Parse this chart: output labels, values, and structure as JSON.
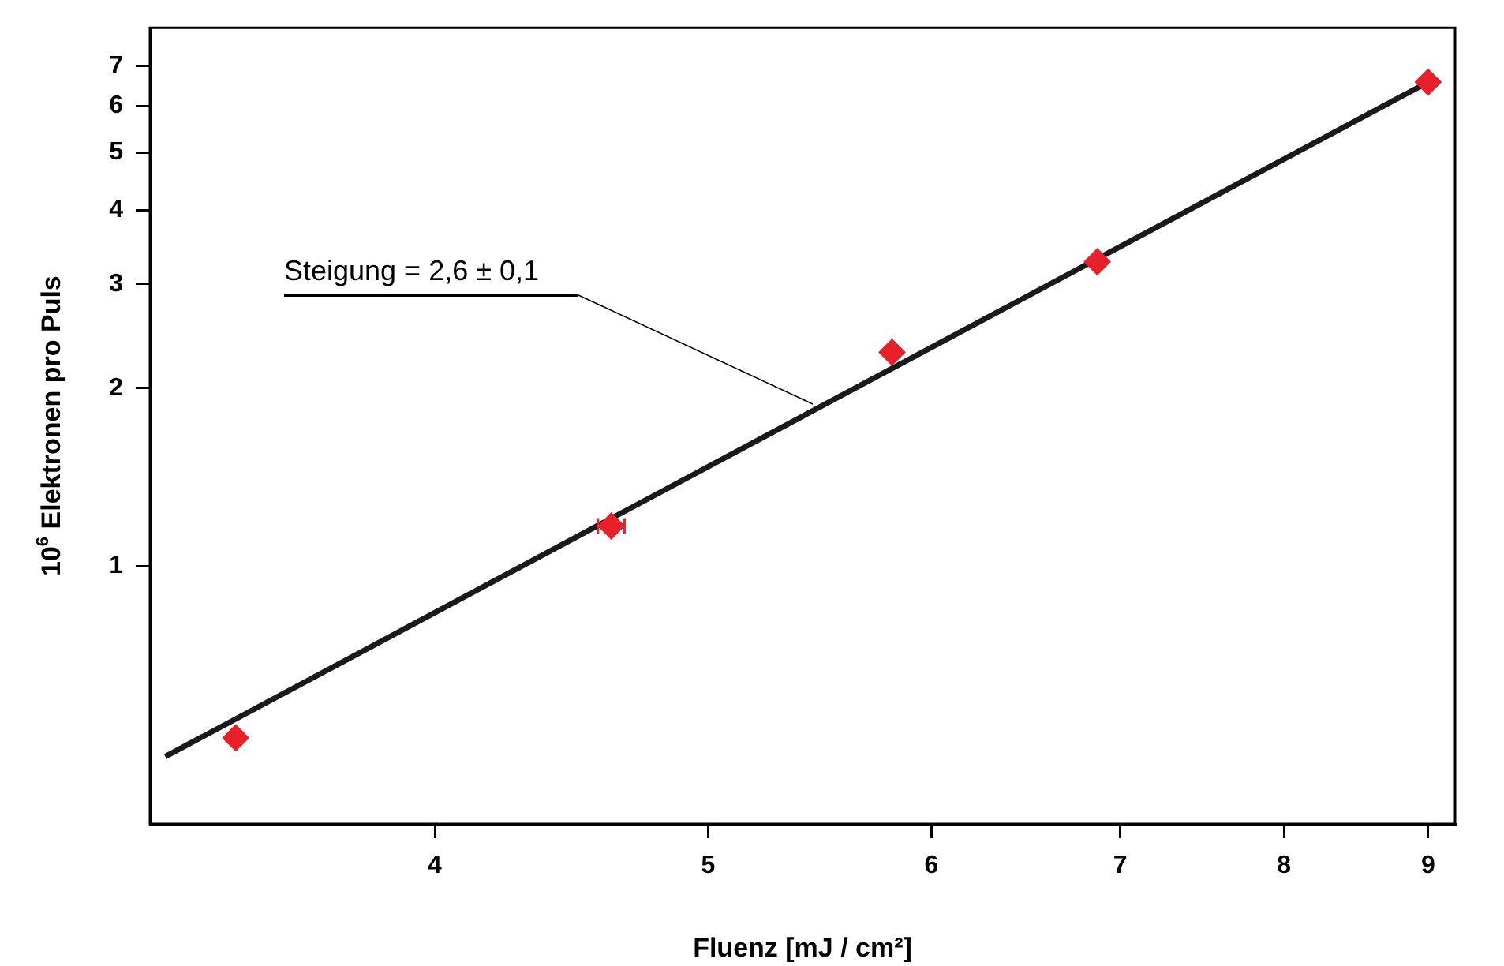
{
  "chart_data": {
    "type": "scatter",
    "xlabel": "Fluenz [mJ / cm²]",
    "ylabel": "10$^{6}$ Elektronen pro Puls",
    "log": "xy",
    "xlim": [
      3.17,
      9.2
    ],
    "xticks": [
      4,
      5,
      6,
      7,
      8,
      9
    ],
    "ylim": [
      0.367,
      8.13
    ],
    "yticks": [
      1,
      2,
      3,
      4,
      5,
      6,
      7
    ],
    "grid": false,
    "legend": false,
    "marker": "diamond",
    "series": [
      {
        "color": "#e8202a",
        "x": [
          3.4,
          4.62,
          5.81,
          6.87,
          9.0
        ],
        "values": [
          0.513,
          1.17,
          2.3,
          3.27,
          6.58
        ],
        "xerrors": [
          null,
          0.05,
          null,
          null,
          null
        ]
      },
      {
        "type": "line",
        "color": "#1a1a1a",
        "x": [
          3.21,
          9.0
        ],
        "values": [
          0.477,
          6.58
        ],
        "marker": "none",
        "line_style": "solid"
      }
    ],
    "annotations": [
      "Steigung = 2,6 ± 0,1"
    ]
  }
}
